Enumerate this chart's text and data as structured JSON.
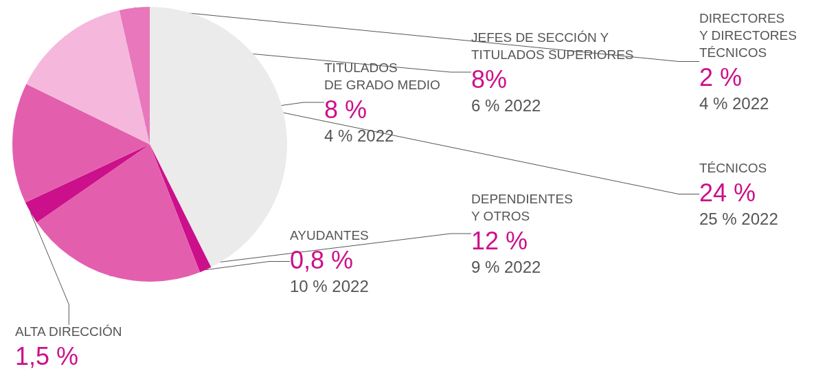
{
  "chart_data": {
    "type": "pie",
    "categories": [
      "TÉCNICOS",
      "AYUDANTES",
      "DEPENDIENTES\nY OTROS",
      "ALTA DIRECCIÓN",
      "TITULADOS\nDE GRADO MEDIO",
      "JEFES DE SECCIÓN Y\nTITULADOS SUPERIORES",
      "DIRECTORES\nY DIRECTORES\nTÉCNICOS"
    ],
    "values": [
      24,
      0.8,
      12,
      1.5,
      8,
      8,
      2
    ],
    "value_labels": [
      "24 %",
      "0,8 %",
      "12 %",
      "1,5 %",
      "8 %",
      "8%",
      "2 %"
    ],
    "colors": [
      "#ebebeb",
      "#cc0f8a",
      "#e35fae",
      "#cc0f8a",
      "#e35fae",
      "#f5b8dc",
      "#e877bb"
    ],
    "annotations": [
      "25 % 2022",
      "10 % 2022",
      "9 % 2022",
      "4 % 2022",
      "6 % 2022",
      "4 % 2022"
    ],
    "legend": false
  }
}
